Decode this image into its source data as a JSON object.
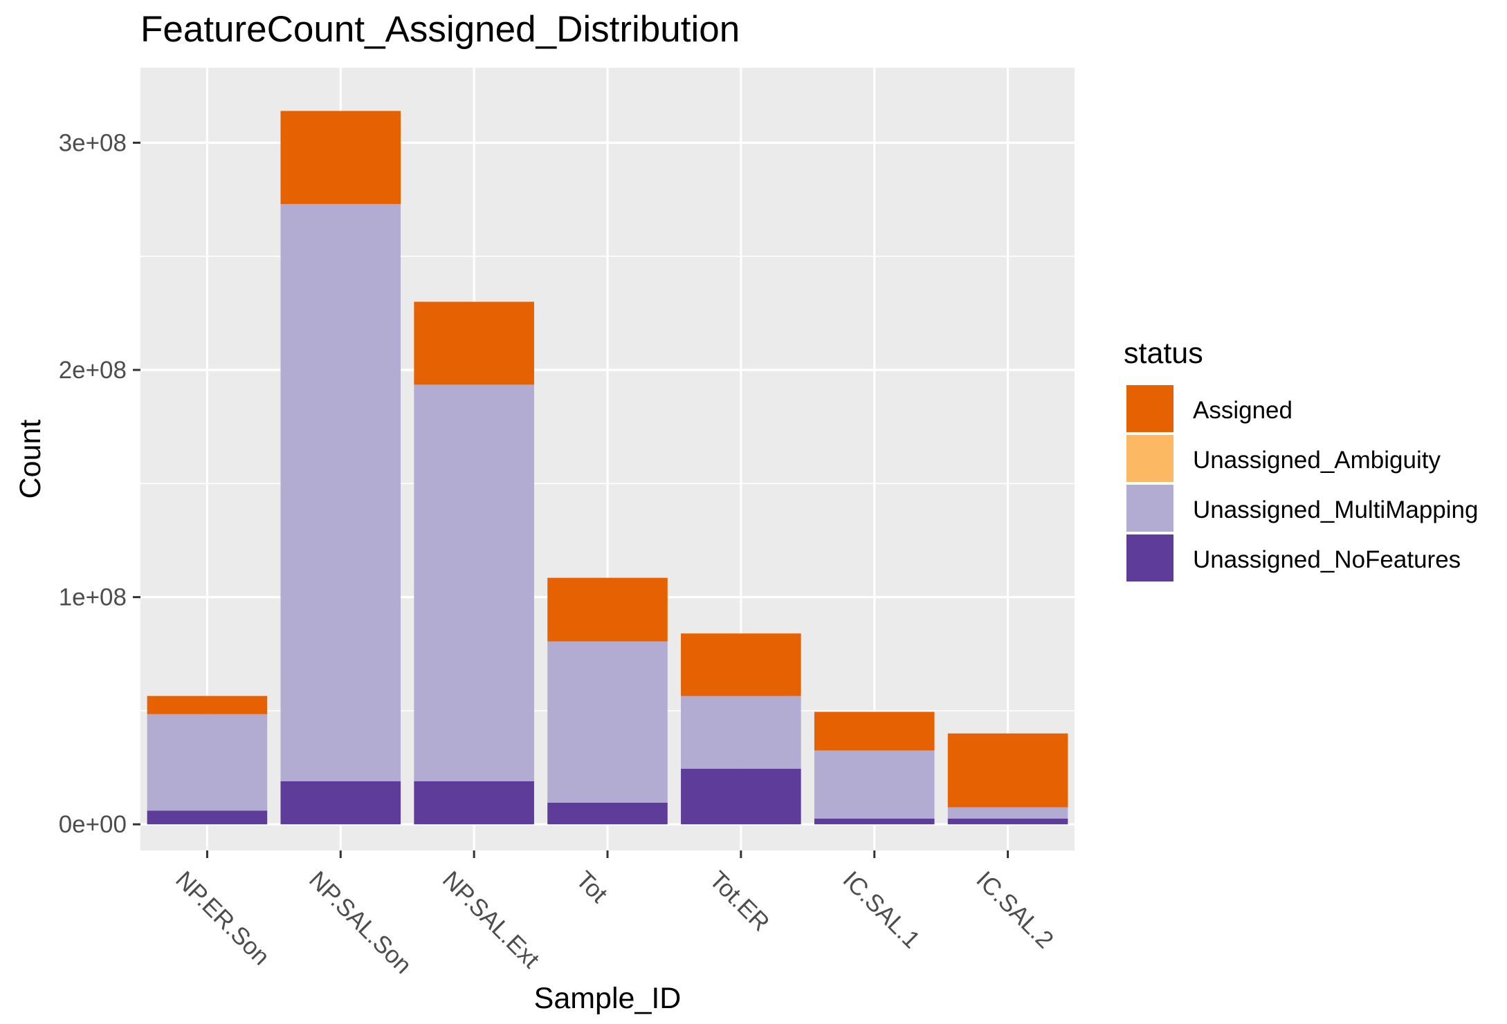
{
  "chart_data": {
    "type": "bar",
    "stacked": true,
    "title": "FeatureCount_Assigned_Distribution",
    "xlabel": "Sample_ID",
    "ylabel": "Count",
    "ylim": [
      -11500000,
      333000000
    ],
    "y_ticks": [
      0,
      100000000,
      200000000,
      300000000
    ],
    "y_tick_labels": [
      "0e+00",
      "1e+08",
      "2e+08",
      "3e+08"
    ],
    "categories": [
      "NP.ER.Son",
      "NP.SAL.Son",
      "NP.SAL.Ext",
      "Tot",
      "Tot.ER",
      "IC.SAL.1",
      "IC.SAL.2"
    ],
    "series": [
      {
        "name": "Unassigned_NoFeatures",
        "color": "#5e3c99",
        "values": [
          6000000,
          19000000,
          19000000,
          9500000,
          24500000,
          2500000,
          2500000
        ]
      },
      {
        "name": "Unassigned_MultiMapping",
        "color": "#b2abd2",
        "values": [
          42500000,
          254000000,
          174500000,
          71000000,
          32000000,
          30000000,
          5000000
        ]
      },
      {
        "name": "Unassigned_Ambiguity",
        "color": "#fdb863",
        "values": [
          0,
          0,
          0,
          0,
          0,
          0,
          0
        ]
      },
      {
        "name": "Assigned",
        "color": "#e66101",
        "values": [
          8000000,
          41000000,
          36500000,
          28000000,
          27500000,
          17000000,
          32500000
        ]
      }
    ],
    "legend": {
      "title": "status",
      "position": "right",
      "entries": [
        {
          "label": "Assigned",
          "color": "#e66101"
        },
        {
          "label": "Unassigned_Ambiguity",
          "color": "#fdb863"
        },
        {
          "label": "Unassigned_MultiMapping",
          "color": "#b2abd2"
        },
        {
          "label": "Unassigned_NoFeatures",
          "color": "#5e3c99"
        }
      ]
    },
    "grid": true,
    "panel_background": "#ebebeb",
    "grid_color": "#ffffff"
  }
}
